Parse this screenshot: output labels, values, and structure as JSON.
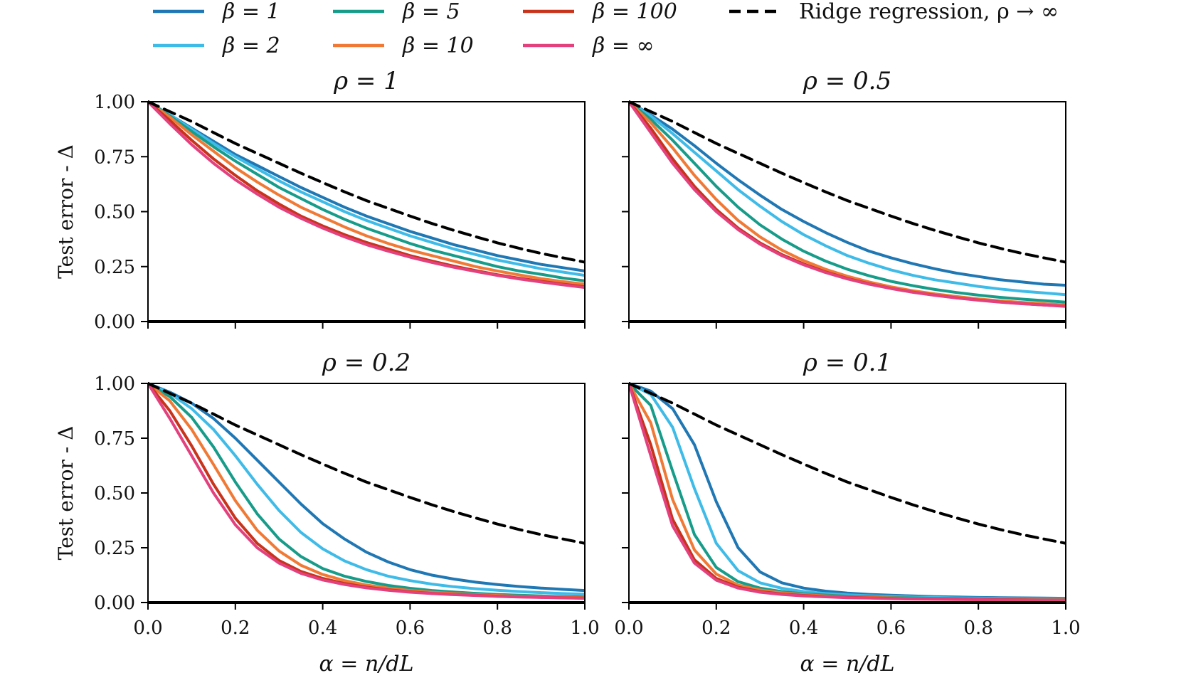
{
  "chart_data": {
    "type": "line",
    "ylabel": "Test error - Δ",
    "xlabel": "α = n/dL",
    "xlim": [
      0,
      1
    ],
    "ylim": [
      0,
      1
    ],
    "xticks": [
      "0.0",
      "0.2",
      "0.4",
      "0.6",
      "0.8",
      "1.0"
    ],
    "yticks": [
      "0.00",
      "0.25",
      "0.50",
      "0.75",
      "1.00"
    ],
    "x": [
      0,
      0.05,
      0.1,
      0.15,
      0.2,
      0.25,
      0.3,
      0.35,
      0.4,
      0.45,
      0.5,
      0.55,
      0.6,
      0.65,
      0.7,
      0.75,
      0.8,
      0.85,
      0.9,
      0.95,
      1.0
    ],
    "legend": {
      "placement": "top",
      "entries": [
        {
          "label": "β = 1",
          "color": "#1f77b4"
        },
        {
          "label": "β = 2",
          "color": "#3fbbe8"
        },
        {
          "label": "β = 5",
          "color": "#179c8a"
        },
        {
          "label": "β = 10",
          "color": "#f07a35"
        },
        {
          "label": "β = 100",
          "color": "#c8331c"
        },
        {
          "label": "β = ∞",
          "color": "#e3407e"
        },
        {
          "label": "Ridge regression, ρ → ∞",
          "color": "#000000",
          "dashed": true
        }
      ]
    },
    "panels": [
      {
        "title": "ρ = 1",
        "series": [
          {
            "values": [
              1.0,
              0.94,
              0.88,
              0.82,
              0.76,
              0.71,
              0.66,
              0.61,
              0.565,
              0.52,
              0.48,
              0.445,
              0.41,
              0.38,
              0.35,
              0.325,
              0.3,
              0.28,
              0.26,
              0.245,
              0.23
            ]
          },
          {
            "values": [
              1.0,
              0.94,
              0.875,
              0.81,
              0.75,
              0.695,
              0.64,
              0.59,
              0.545,
              0.5,
              0.46,
              0.425,
              0.39,
              0.36,
              0.33,
              0.305,
              0.28,
              0.26,
              0.24,
              0.225,
              0.21
            ]
          },
          {
            "values": [
              1.0,
              0.935,
              0.865,
              0.795,
              0.73,
              0.67,
              0.61,
              0.56,
              0.51,
              0.465,
              0.425,
              0.39,
              0.355,
              0.325,
              0.3,
              0.275,
              0.25,
              0.23,
              0.215,
              0.198,
              0.185
            ]
          },
          {
            "values": [
              1.0,
              0.93,
              0.85,
              0.775,
              0.7,
              0.635,
              0.575,
              0.52,
              0.475,
              0.43,
              0.39,
              0.355,
              0.325,
              0.3,
              0.275,
              0.25,
              0.23,
              0.212,
              0.195,
              0.182,
              0.17
            ]
          },
          {
            "values": [
              1.0,
              0.915,
              0.825,
              0.74,
              0.665,
              0.595,
              0.535,
              0.48,
              0.435,
              0.395,
              0.36,
              0.33,
              0.3,
              0.275,
              0.252,
              0.232,
              0.213,
              0.197,
              0.183,
              0.17,
              0.158
            ]
          },
          {
            "values": [
              1.0,
              0.9,
              0.805,
              0.72,
              0.645,
              0.58,
              0.52,
              0.47,
              0.425,
              0.385,
              0.35,
              0.32,
              0.293,
              0.269,
              0.247,
              0.228,
              0.21,
              0.194,
              0.18,
              0.167,
              0.155
            ]
          },
          {
            "values": [
              1.0,
              0.955,
              0.91,
              0.86,
              0.81,
              0.765,
              0.72,
              0.675,
              0.632,
              0.59,
              0.55,
              0.515,
              0.48,
              0.446,
              0.415,
              0.386,
              0.358,
              0.333,
              0.31,
              0.29,
              0.27
            ]
          }
        ]
      },
      {
        "title": "ρ = 0.5",
        "series": [
          {
            "values": [
              1.0,
              0.94,
              0.875,
              0.8,
              0.72,
              0.645,
              0.575,
              0.51,
              0.455,
              0.405,
              0.36,
              0.32,
              0.29,
              0.263,
              0.24,
              0.22,
              0.205,
              0.19,
              0.18,
              0.17,
              0.165
            ]
          },
          {
            "values": [
              1.0,
              0.935,
              0.855,
              0.77,
              0.685,
              0.6,
              0.525,
              0.455,
              0.395,
              0.345,
              0.3,
              0.265,
              0.235,
              0.21,
              0.19,
              0.175,
              0.16,
              0.148,
              0.138,
              0.13,
              0.122
            ]
          },
          {
            "values": [
              1.0,
              0.92,
              0.825,
              0.72,
              0.615,
              0.52,
              0.44,
              0.375,
              0.32,
              0.275,
              0.238,
              0.208,
              0.183,
              0.163,
              0.146,
              0.132,
              0.12,
              0.11,
              0.102,
              0.095,
              0.088
            ]
          },
          {
            "values": [
              1.0,
              0.905,
              0.79,
              0.665,
              0.555,
              0.46,
              0.385,
              0.325,
              0.277,
              0.238,
              0.206,
              0.18,
              0.158,
              0.14,
              0.126,
              0.114,
              0.103,
              0.094,
              0.087,
              0.081,
              0.075
            ]
          },
          {
            "values": [
              1.0,
              0.88,
              0.74,
              0.615,
              0.51,
              0.425,
              0.358,
              0.305,
              0.262,
              0.226,
              0.196,
              0.172,
              0.151,
              0.134,
              0.12,
              0.108,
              0.098,
              0.089,
              0.082,
              0.075,
              0.07
            ]
          },
          {
            "values": [
              1.0,
              0.86,
              0.72,
              0.6,
              0.5,
              0.418,
              0.352,
              0.3,
              0.258,
              0.223,
              0.194,
              0.17,
              0.15,
              0.133,
              0.119,
              0.107,
              0.097,
              0.088,
              0.081,
              0.075,
              0.069
            ]
          },
          {
            "values": [
              1.0,
              0.955,
              0.91,
              0.86,
              0.81,
              0.765,
              0.72,
              0.675,
              0.632,
              0.59,
              0.55,
              0.515,
              0.48,
              0.446,
              0.415,
              0.386,
              0.358,
              0.333,
              0.31,
              0.29,
              0.27
            ]
          }
        ]
      },
      {
        "title": "ρ = 0.2",
        "series": [
          {
            "values": [
              1.0,
              0.96,
              0.91,
              0.84,
              0.75,
              0.65,
              0.55,
              0.45,
              0.36,
              0.29,
              0.23,
              0.185,
              0.15,
              0.125,
              0.107,
              0.093,
              0.082,
              0.073,
              0.066,
              0.06,
              0.055
            ]
          },
          {
            "values": [
              1.0,
              0.955,
              0.885,
              0.79,
              0.67,
              0.54,
              0.42,
              0.32,
              0.245,
              0.19,
              0.15,
              0.12,
              0.1,
              0.084,
              0.072,
              0.063,
              0.056,
              0.05,
              0.045,
              0.041,
              0.038
            ]
          },
          {
            "values": [
              1.0,
              0.94,
              0.845,
              0.71,
              0.55,
              0.405,
              0.29,
              0.21,
              0.155,
              0.12,
              0.096,
              0.078,
              0.065,
              0.055,
              0.048,
              0.042,
              0.037,
              0.033,
              0.03,
              0.027,
              0.025
            ]
          },
          {
            "values": [
              1.0,
              0.92,
              0.79,
              0.63,
              0.465,
              0.33,
              0.235,
              0.17,
              0.128,
              0.1,
              0.08,
              0.066,
              0.055,
              0.047,
              0.041,
              0.036,
              0.032,
              0.029,
              0.026,
              0.024,
              0.022
            ]
          },
          {
            "values": [
              1.0,
              0.875,
              0.715,
              0.54,
              0.385,
              0.27,
              0.192,
              0.142,
              0.11,
              0.087,
              0.07,
              0.058,
              0.049,
              0.042,
              0.037,
              0.033,
              0.029,
              0.026,
              0.024,
              0.022,
              0.02
            ]
          },
          {
            "values": [
              1.0,
              0.84,
              0.67,
              0.5,
              0.355,
              0.25,
              0.18,
              0.133,
              0.103,
              0.082,
              0.067,
              0.056,
              0.047,
              0.041,
              0.036,
              0.032,
              0.028,
              0.025,
              0.023,
              0.021,
              0.019
            ]
          },
          {
            "values": [
              1.0,
              0.955,
              0.91,
              0.86,
              0.81,
              0.765,
              0.72,
              0.675,
              0.632,
              0.59,
              0.55,
              0.515,
              0.48,
              0.446,
              0.415,
              0.386,
              0.358,
              0.333,
              0.31,
              0.29,
              0.27
            ]
          }
        ]
      },
      {
        "title": "ρ = 0.1",
        "series": [
          {
            "values": [
              1.0,
              0.965,
              0.885,
              0.72,
              0.46,
              0.25,
              0.14,
              0.09,
              0.066,
              0.052,
              0.043,
              0.037,
              0.033,
              0.03,
              0.027,
              0.025,
              0.023,
              0.022,
              0.021,
              0.02,
              0.019
            ]
          },
          {
            "values": [
              1.0,
              0.95,
              0.8,
              0.52,
              0.27,
              0.145,
              0.09,
              0.065,
              0.05,
              0.041,
              0.035,
              0.031,
              0.028,
              0.025,
              0.023,
              0.021,
              0.02,
              0.019,
              0.018,
              0.017,
              0.016
            ]
          },
          {
            "values": [
              1.0,
              0.9,
              0.6,
              0.31,
              0.16,
              0.095,
              0.066,
              0.05,
              0.04,
              0.034,
              0.029,
              0.026,
              0.023,
              0.021,
              0.019,
              0.018,
              0.017,
              0.016,
              0.015,
              0.014,
              0.013
            ]
          },
          {
            "values": [
              1.0,
              0.82,
              0.47,
              0.24,
              0.13,
              0.08,
              0.057,
              0.044,
              0.036,
              0.03,
              0.026,
              0.023,
              0.021,
              0.019,
              0.017,
              0.016,
              0.015,
              0.014,
              0.013,
              0.012,
              0.012
            ]
          },
          {
            "values": [
              1.0,
              0.72,
              0.38,
              0.195,
              0.11,
              0.07,
              0.05,
              0.039,
              0.032,
              0.027,
              0.024,
              0.021,
              0.019,
              0.017,
              0.016,
              0.015,
              0.014,
              0.013,
              0.012,
              0.011,
              0.011
            ]
          },
          {
            "values": [
              1.0,
              0.67,
              0.35,
              0.18,
              0.102,
              0.066,
              0.047,
              0.037,
              0.03,
              0.026,
              0.022,
              0.02,
              0.018,
              0.016,
              0.015,
              0.014,
              0.013,
              0.012,
              0.011,
              0.011,
              0.01
            ]
          },
          {
            "values": [
              1.0,
              0.955,
              0.91,
              0.86,
              0.81,
              0.765,
              0.72,
              0.675,
              0.632,
              0.59,
              0.55,
              0.515,
              0.48,
              0.446,
              0.415,
              0.386,
              0.358,
              0.333,
              0.31,
              0.29,
              0.27
            ]
          }
        ]
      }
    ]
  }
}
